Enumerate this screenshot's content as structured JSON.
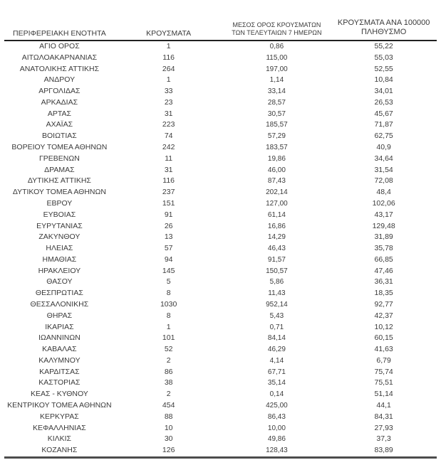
{
  "table": {
    "header": {
      "region": "ΠΕΡΙΦΕΡΕΙΑΚΗ ΕΝΟΤΗΤΑ",
      "cases": "ΚΡΟΥΣΜΑΤΑ",
      "avg7_line1": "ΜΕΣΟΣ ΟΡΟΣ ΚΡΟΥΣΜΑΤΩΝ",
      "avg7_line2": "ΤΩΝ ΤΕΛΕΥΤΑΙΩΝ 7 ΗΜΕΡΩΝ",
      "per100k_line1": "ΚΡΟΥΣΜΑΤΑ ΑΝΑ 100000",
      "per100k_line2": "ΠΛΗΘΥΣΜΟ"
    },
    "rows": [
      {
        "region": "ΑΓΙΟ ΟΡΟΣ",
        "cases": "1",
        "avg7": "0,86",
        "per100k": "55,22"
      },
      {
        "region": "ΑΙΤΩΛΟΑΚΑΡΝΑΝΙΑΣ",
        "cases": "116",
        "avg7": "115,00",
        "per100k": "55,03"
      },
      {
        "region": "ΑΝΑΤΟΛΙΚΗΣ ΑΤΤΙΚΗΣ",
        "cases": "264",
        "avg7": "197,00",
        "per100k": "52,55"
      },
      {
        "region": "ΑΝΔΡΟΥ",
        "cases": "1",
        "avg7": "1,14",
        "per100k": "10,84"
      },
      {
        "region": "ΑΡΓΟΛΙΔΑΣ",
        "cases": "33",
        "avg7": "33,14",
        "per100k": "34,01"
      },
      {
        "region": "ΑΡΚΑΔΙΑΣ",
        "cases": "23",
        "avg7": "28,57",
        "per100k": "26,53"
      },
      {
        "region": "ΑΡΤΑΣ",
        "cases": "31",
        "avg7": "30,57",
        "per100k": "45,67"
      },
      {
        "region": "ΑΧΑΪΑΣ",
        "cases": "223",
        "avg7": "185,57",
        "per100k": "71,87"
      },
      {
        "region": "ΒΟΙΩΤΙΑΣ",
        "cases": "74",
        "avg7": "57,29",
        "per100k": "62,75"
      },
      {
        "region": "ΒΟΡΕΙΟΥ ΤΟΜΕΑ ΑΘΗΝΩΝ",
        "cases": "242",
        "avg7": "183,57",
        "per100k": "40,9"
      },
      {
        "region": "ΓΡΕΒΕΝΩΝ",
        "cases": "11",
        "avg7": "19,86",
        "per100k": "34,64"
      },
      {
        "region": "ΔΡΑΜΑΣ",
        "cases": "31",
        "avg7": "46,00",
        "per100k": "31,54"
      },
      {
        "region": "ΔΥΤΙΚΗΣ ΑΤΤΙΚΗΣ",
        "cases": "116",
        "avg7": "87,43",
        "per100k": "72,08"
      },
      {
        "region": "ΔΥΤΙΚΟΥ ΤΟΜΕΑ ΑΘΗΝΩΝ",
        "cases": "237",
        "avg7": "202,14",
        "per100k": "48,4"
      },
      {
        "region": "ΕΒΡΟΥ",
        "cases": "151",
        "avg7": "127,00",
        "per100k": "102,06"
      },
      {
        "region": "ΕΥΒΟΙΑΣ",
        "cases": "91",
        "avg7": "61,14",
        "per100k": "43,17"
      },
      {
        "region": "ΕΥΡΥΤΑΝΙΑΣ",
        "cases": "26",
        "avg7": "16,86",
        "per100k": "129,48"
      },
      {
        "region": "ΖΑΚΥΝΘΟΥ",
        "cases": "13",
        "avg7": "14,29",
        "per100k": "31,89"
      },
      {
        "region": "ΗΛΕΙΑΣ",
        "cases": "57",
        "avg7": "46,43",
        "per100k": "35,78"
      },
      {
        "region": "ΗΜΑΘΙΑΣ",
        "cases": "94",
        "avg7": "91,57",
        "per100k": "66,85"
      },
      {
        "region": "ΗΡΑΚΛΕΙΟΥ",
        "cases": "145",
        "avg7": "150,57",
        "per100k": "47,46"
      },
      {
        "region": "ΘΑΣΟΥ",
        "cases": "5",
        "avg7": "5,86",
        "per100k": "36,31"
      },
      {
        "region": "ΘΕΣΠΡΩΤΙΑΣ",
        "cases": "8",
        "avg7": "11,43",
        "per100k": "18,35"
      },
      {
        "region": "ΘΕΣΣΑΛΟΝΙΚΗΣ",
        "cases": "1030",
        "avg7": "952,14",
        "per100k": "92,77"
      },
      {
        "region": "ΘΗΡΑΣ",
        "cases": "8",
        "avg7": "5,43",
        "per100k": "42,37"
      },
      {
        "region": "ΙΚΑΡΙΑΣ",
        "cases": "1",
        "avg7": "0,71",
        "per100k": "10,12"
      },
      {
        "region": "ΙΩΑΝΝΙΝΩΝ",
        "cases": "101",
        "avg7": "84,14",
        "per100k": "60,15"
      },
      {
        "region": "ΚΑΒΑΛΑΣ",
        "cases": "52",
        "avg7": "46,29",
        "per100k": "41,63"
      },
      {
        "region": "ΚΑΛΥΜΝΟΥ",
        "cases": "2",
        "avg7": "4,14",
        "per100k": "6,79"
      },
      {
        "region": "ΚΑΡΔΙΤΣΑΣ",
        "cases": "86",
        "avg7": "67,71",
        "per100k": "75,74"
      },
      {
        "region": "ΚΑΣΤΟΡΙΑΣ",
        "cases": "38",
        "avg7": "35,14",
        "per100k": "75,51"
      },
      {
        "region": "ΚΕΑΣ - ΚΥΘΝΟΥ",
        "cases": "2",
        "avg7": "0,14",
        "per100k": "51,14"
      },
      {
        "region": "ΚΕΝΤΡΙΚΟΥ ΤΟΜΕΑ ΑΘΗΝΩΝ",
        "cases": "454",
        "avg7": "425,00",
        "per100k": "44,1"
      },
      {
        "region": "ΚΕΡΚΥΡΑΣ",
        "cases": "88",
        "avg7": "86,43",
        "per100k": "84,31"
      },
      {
        "region": "ΚΕΦΑΛΛΗΝΙΑΣ",
        "cases": "10",
        "avg7": "10,00",
        "per100k": "27,93"
      },
      {
        "region": "ΚΙΛΚΙΣ",
        "cases": "30",
        "avg7": "49,86",
        "per100k": "37,3"
      },
      {
        "region": "ΚΟΖΑΝΗΣ",
        "cases": "126",
        "avg7": "128,43",
        "per100k": "83,89"
      }
    ]
  },
  "colors": {
    "text": "#3b3b3b",
    "header_rule": "#212121",
    "bottom_rule": "#4d4d4d",
    "background": "#ffffff"
  }
}
